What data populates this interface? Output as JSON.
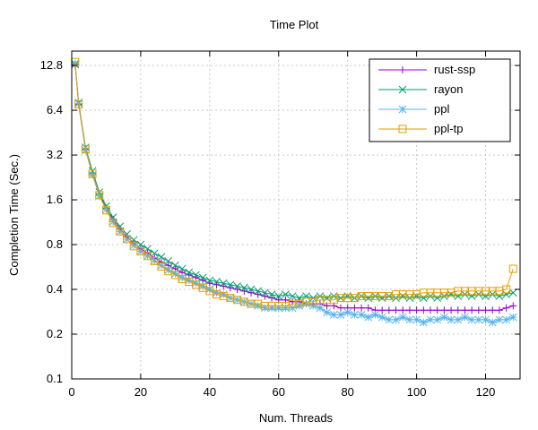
{
  "chart_data": {
    "type": "line",
    "title": "Time Plot",
    "xlabel": "Num. Threads",
    "ylabel": "Completion Time (Sec.)",
    "xlim": [
      0,
      130
    ],
    "ylim": [
      0.1,
      16
    ],
    "yscale": "log2",
    "grid": true,
    "legend_position": "top-right",
    "x_ticks": [
      0,
      20,
      40,
      60,
      80,
      100,
      120
    ],
    "x_tick_labels": [
      "0",
      "20",
      "40",
      "60",
      "80",
      "100",
      "120"
    ],
    "y_ticks": [
      0.1,
      0.2,
      0.4,
      0.8,
      1.6,
      3.2,
      6.4,
      12.8
    ],
    "y_tick_labels": [
      "0.1",
      "0.2",
      "0.4",
      "0.8",
      "1.6",
      "3.2",
      "6.4",
      "12.8"
    ],
    "x": [
      1,
      2,
      4,
      6,
      8,
      10,
      12,
      14,
      16,
      18,
      20,
      22,
      24,
      26,
      28,
      30,
      32,
      34,
      36,
      38,
      40,
      42,
      44,
      46,
      48,
      50,
      52,
      54,
      56,
      58,
      60,
      62,
      64,
      66,
      68,
      70,
      72,
      74,
      76,
      78,
      80,
      82,
      84,
      86,
      88,
      90,
      92,
      94,
      96,
      98,
      100,
      102,
      104,
      106,
      108,
      110,
      112,
      114,
      116,
      118,
      120,
      122,
      124,
      126,
      128
    ],
    "series": [
      {
        "name": "rust-ssp",
        "color": "#9400d3",
        "marker": "plus",
        "values": [
          13.0,
          7.0,
          3.5,
          2.4,
          1.75,
          1.4,
          1.18,
          1.02,
          0.9,
          0.82,
          0.75,
          0.7,
          0.65,
          0.61,
          0.58,
          0.55,
          0.52,
          0.5,
          0.48,
          0.46,
          0.44,
          0.43,
          0.42,
          0.41,
          0.4,
          0.39,
          0.38,
          0.37,
          0.36,
          0.35,
          0.34,
          0.34,
          0.33,
          0.33,
          0.32,
          0.32,
          0.32,
          0.31,
          0.31,
          0.3,
          0.3,
          0.3,
          0.3,
          0.3,
          0.29,
          0.29,
          0.29,
          0.29,
          0.29,
          0.29,
          0.29,
          0.29,
          0.29,
          0.29,
          0.29,
          0.29,
          0.29,
          0.29,
          0.29,
          0.29,
          0.29,
          0.29,
          0.29,
          0.3,
          0.31
        ]
      },
      {
        "name": "rayon",
        "color": "#009e73",
        "marker": "cross",
        "values": [
          13.0,
          7.2,
          3.6,
          2.5,
          1.8,
          1.45,
          1.22,
          1.06,
          0.94,
          0.86,
          0.8,
          0.75,
          0.7,
          0.66,
          0.62,
          0.58,
          0.55,
          0.52,
          0.5,
          0.48,
          0.46,
          0.45,
          0.44,
          0.43,
          0.42,
          0.41,
          0.4,
          0.39,
          0.38,
          0.37,
          0.36,
          0.37,
          0.36,
          0.35,
          0.36,
          0.35,
          0.36,
          0.35,
          0.36,
          0.35,
          0.36,
          0.35,
          0.36,
          0.35,
          0.36,
          0.35,
          0.36,
          0.35,
          0.36,
          0.35,
          0.36,
          0.35,
          0.36,
          0.35,
          0.36,
          0.37,
          0.36,
          0.37,
          0.36,
          0.37,
          0.36,
          0.37,
          0.36,
          0.37,
          0.38
        ]
      },
      {
        "name": "ppl",
        "color": "#56b4e9",
        "marker": "star",
        "values": [
          13.2,
          7.1,
          3.45,
          2.35,
          1.7,
          1.38,
          1.14,
          0.98,
          0.87,
          0.79,
          0.72,
          0.67,
          0.62,
          0.58,
          0.54,
          0.51,
          0.48,
          0.46,
          0.44,
          0.42,
          0.4,
          0.38,
          0.37,
          0.35,
          0.34,
          0.33,
          0.32,
          0.31,
          0.3,
          0.3,
          0.3,
          0.3,
          0.3,
          0.31,
          0.32,
          0.31,
          0.3,
          0.28,
          0.27,
          0.27,
          0.28,
          0.27,
          0.27,
          0.26,
          0.27,
          0.26,
          0.25,
          0.25,
          0.26,
          0.25,
          0.25,
          0.24,
          0.25,
          0.25,
          0.26,
          0.25,
          0.25,
          0.26,
          0.25,
          0.25,
          0.25,
          0.24,
          0.25,
          0.25,
          0.26
        ]
      },
      {
        "name": "ppl-tp",
        "color": "#e69f00",
        "marker": "square",
        "values": [
          13.5,
          7.0,
          3.5,
          2.4,
          1.72,
          1.36,
          1.12,
          0.98,
          0.87,
          0.78,
          0.72,
          0.67,
          0.62,
          0.57,
          0.53,
          0.5,
          0.47,
          0.45,
          0.43,
          0.41,
          0.39,
          0.37,
          0.36,
          0.35,
          0.34,
          0.33,
          0.32,
          0.32,
          0.31,
          0.31,
          0.31,
          0.31,
          0.32,
          0.32,
          0.33,
          0.33,
          0.34,
          0.34,
          0.34,
          0.35,
          0.35,
          0.35,
          0.36,
          0.36,
          0.36,
          0.36,
          0.36,
          0.37,
          0.37,
          0.37,
          0.37,
          0.38,
          0.38,
          0.38,
          0.38,
          0.38,
          0.39,
          0.39,
          0.39,
          0.39,
          0.39,
          0.39,
          0.39,
          0.4,
          0.55
        ]
      }
    ]
  }
}
